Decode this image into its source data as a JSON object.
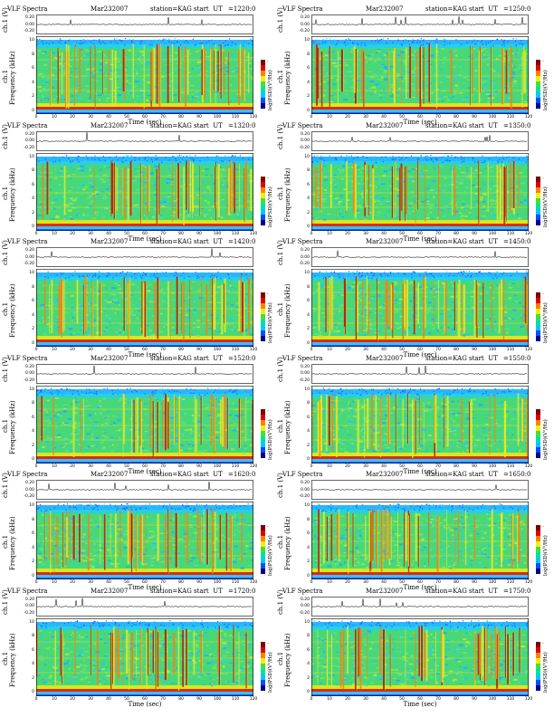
{
  "header": {
    "title": "VLF Spectra",
    "date": "Mar232007",
    "station": "station=KAG",
    "start_label": "start  UT"
  },
  "panels": [
    {
      "start_ut": "=1220:0"
    },
    {
      "start_ut": "=1250:0"
    },
    {
      "start_ut": "=1320:0"
    },
    {
      "start_ut": "=1350:0"
    },
    {
      "start_ut": "=1420:0"
    },
    {
      "start_ut": "=1450:0"
    },
    {
      "start_ut": "=1520:0"
    },
    {
      "start_ut": "=1550:0"
    },
    {
      "start_ut": "=1620:0"
    },
    {
      "start_ut": "=1650:0"
    },
    {
      "start_ut": "=1720:0"
    },
    {
      "start_ut": "=1750:0"
    }
  ],
  "axes": {
    "ch1_label": "ch.1 (V)",
    "ch1_ticks_left": [
      "0.20",
      "0.00",
      "-0.20"
    ],
    "ch1_ticks_right": [
      "0.20",
      "0.00",
      "-0.20"
    ],
    "freq_label_top": "ch.1",
    "freq_label": "Frequency  (kHz)",
    "freq_ticks": [
      "10",
      "8",
      "6",
      "4",
      "2",
      "0"
    ],
    "time_label": "Time  (sec)",
    "time_ticks": [
      "0",
      "10",
      "20",
      "30",
      "40",
      "50",
      "60",
      "70",
      "80",
      "90",
      "100",
      "110",
      "120"
    ],
    "colorbar_label": "log(PSD)(V²/Hz)",
    "colorbar_ticks": [
      "-",
      "-",
      "-"
    ]
  },
  "chart_data": {
    "type": "heatmap",
    "description_kind": "VLF spectrogram grid, 6 rows x 2 columns",
    "x_range": [
      0,
      120
    ],
    "y_range_khz": [
      0,
      10
    ],
    "ch1_range": [
      -0.3,
      0.3
    ],
    "colormap": [
      "#00008b",
      "#0050ff",
      "#00c8ff",
      "#00e0a0",
      "#40e040",
      "#f0f000",
      "#ff8000",
      "#e00000",
      "#800000"
    ],
    "background_band_color": "#20c8e8",
    "dominant_color": "#40e060",
    "low_band_color": "#e02000"
  }
}
